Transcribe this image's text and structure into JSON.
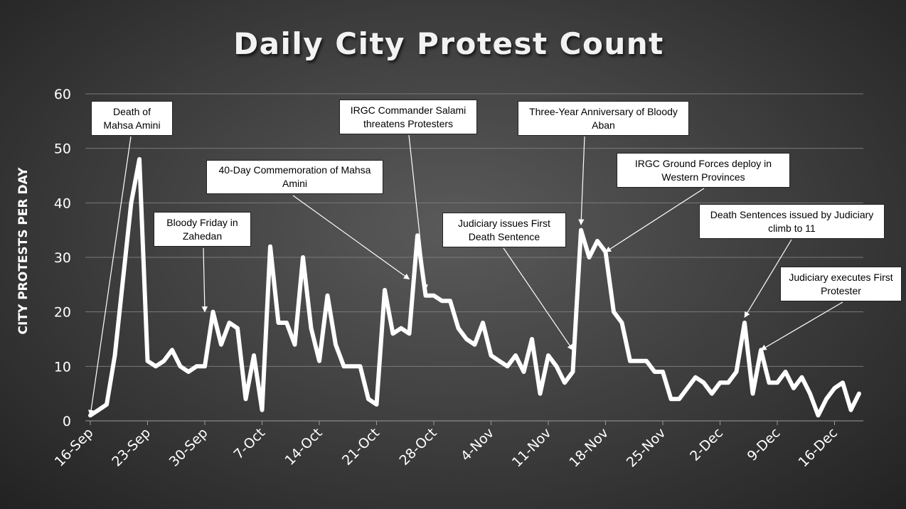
{
  "chart_data": {
    "type": "line",
    "title": "Daily City Protest Count",
    "ylabel": "CITY PROTESTS PER DAY",
    "xlabel": "",
    "ylim": [
      0,
      60
    ],
    "yticks": [
      0,
      10,
      20,
      30,
      40,
      50,
      60
    ],
    "xtick_labels": [
      "16-Sep",
      "23-Sep",
      "30-Sep",
      "7-Oct",
      "14-Oct",
      "21-Oct",
      "28-Oct",
      "4-Nov",
      "11-Nov",
      "18-Nov",
      "25-Nov",
      "2-Dec",
      "9-Dec",
      "16-Dec"
    ],
    "grid": true,
    "series": [
      {
        "values": [
          1,
          2,
          3,
          12,
          26,
          40,
          48,
          11,
          10,
          11,
          13,
          10,
          9,
          10,
          10,
          20,
          14,
          18,
          17,
          4,
          12,
          2,
          32,
          18,
          18,
          14,
          30,
          17,
          11,
          23,
          14,
          10,
          10,
          10,
          4,
          3,
          24,
          16,
          17,
          16,
          34,
          23,
          23,
          22,
          22,
          17,
          15,
          14,
          18,
          12,
          11,
          10,
          12,
          9,
          15,
          5,
          12,
          10,
          7,
          9,
          35,
          30,
          33,
          31,
          20,
          18,
          11,
          11,
          11,
          9,
          9,
          4,
          4,
          6,
          8,
          7,
          5,
          7,
          7,
          9,
          18,
          5,
          13,
          7,
          7,
          9,
          6,
          8,
          5,
          1,
          4,
          6,
          7,
          2,
          5
        ]
      }
    ],
    "color": "#ffffff",
    "annotations": [
      {
        "text": "Death of Mahsa Amini",
        "lines": [
          "Death of",
          "Mahsa Amini"
        ],
        "day": 0,
        "value": 1
      },
      {
        "text": "Bloody Friday in Zahedan",
        "lines": [
          "Bloody Friday in",
          "Zahedan"
        ],
        "day": 14,
        "value": 20
      },
      {
        "text": "40-Day Commemoration of Mahsa Amini",
        "lines": [
          "40-Day Commemoration of Mahsa",
          "Amini"
        ],
        "day": 39,
        "value": 26
      },
      {
        "text": "IRGC Commander Salami threatens Protesters",
        "lines": [
          "IRGC Commander Salami",
          "threatens Protesters"
        ],
        "day": 41,
        "value": 24
      },
      {
        "text": "Judiciary issues First Death Sentence",
        "lines": [
          "Judiciary issues First",
          "Death Sentence"
        ],
        "day": 59,
        "value": 13
      },
      {
        "text": "Three-Year Anniversary of Bloody Aban",
        "lines": [
          "Three-Year Anniversary of Bloody",
          "Aban"
        ],
        "day": 60,
        "value": 36
      },
      {
        "text": "IRGC Ground Forces deploy in Western Provinces",
        "lines": [
          "IRGC Ground Forces deploy in",
          "Western Provinces"
        ],
        "day": 63,
        "value": 31
      },
      {
        "text": "Death Sentences issued by Judiciary climb to 11",
        "lines": [
          "Death Sentences issued by Judiciary",
          "climb to 11"
        ],
        "day": 80,
        "value": 19
      },
      {
        "text": "Judiciary executes First Protester",
        "lines": [
          "Judiciary executes First",
          "Protester"
        ],
        "day": 82,
        "value": 13
      }
    ]
  }
}
